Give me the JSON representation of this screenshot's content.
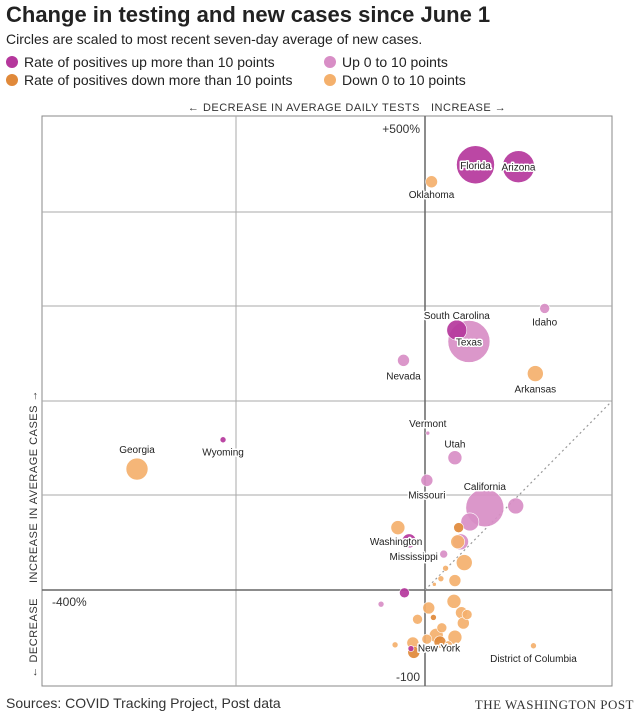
{
  "header": {
    "title": "Change in testing and new cases since June 1",
    "subtitle": "Circles are scaled to most recent seven-day average of new cases."
  },
  "legend": [
    {
      "label": "Rate of positives up more than 10 points",
      "color": "#b5379c"
    },
    {
      "label": "Up 0 to 10 points",
      "color": "#d88ec6"
    },
    {
      "label": "Rate of positives down more than 10 points",
      "color": "#e0893a"
    },
    {
      "label": "Down 0 to 10 points",
      "color": "#f4b06c"
    }
  ],
  "footer": {
    "source": "Sources: COVID Tracking Project, Post data",
    "credit": "THE WASHINGTON POST"
  },
  "chart_data": {
    "type": "scatter",
    "x_axis": {
      "label_left": "← DECREASE IN AVERAGE DAILY TESTS",
      "label_right": "INCREASE →",
      "min_label": "-400%",
      "range": [
        -400,
        200
      ]
    },
    "y_axis": {
      "label_up": "INCREASE IN AVERAGE CASES →",
      "label_down": "← DECREASE",
      "max_label": "+500%",
      "min_label": "-100",
      "range": [
        -100,
        500
      ]
    },
    "reference_line": "diagonal, dotted (cases change equals tests change)",
    "grid": true,
    "colors": {
      "up_more_10": "#b5379c",
      "up_0_10": "#d88ec6",
      "down_more_10": "#e0893a",
      "down_0_10": "#f4b06c"
    },
    "points": [
      {
        "name": "Florida",
        "x": 54,
        "y": 450,
        "size": 19,
        "category": "up_more_10"
      },
      {
        "name": "Arizona",
        "x": 100,
        "y": 448,
        "size": 16,
        "category": "up_more_10"
      },
      {
        "name": "Oklahoma",
        "x": 7,
        "y": 432,
        "size": 6,
        "category": "down_0_10"
      },
      {
        "name": "South Carolina",
        "x": 34,
        "y": 275,
        "size": 10,
        "category": "up_more_10"
      },
      {
        "name": "Texas",
        "x": 47,
        "y": 263,
        "size": 21,
        "category": "up_0_10"
      },
      {
        "name": "Idaho",
        "x": 128,
        "y": 298,
        "size": 5,
        "category": "up_0_10"
      },
      {
        "name": "Nevada",
        "x": -23,
        "y": 243,
        "size": 6,
        "category": "up_0_10"
      },
      {
        "name": "Arkansas",
        "x": 118,
        "y": 229,
        "size": 8,
        "category": "down_0_10"
      },
      {
        "name": "Vermont",
        "x": 3,
        "y": 166,
        "size": 2,
        "category": "up_0_10"
      },
      {
        "name": "Utah",
        "x": 32,
        "y": 140,
        "size": 7,
        "category": "up_0_10"
      },
      {
        "name": "Georgia",
        "x": -308,
        "y": 128,
        "size": 11,
        "category": "down_0_10"
      },
      {
        "name": "Wyoming",
        "x": -216,
        "y": 159,
        "size": 3,
        "category": "up_more_10"
      },
      {
        "name": "Missouri",
        "x": 2,
        "y": 116,
        "size": 6,
        "category": "up_0_10"
      },
      {
        "name": "California",
        "x": 64,
        "y": 87,
        "size": 19,
        "category": "up_0_10"
      },
      {
        "name": "Washington",
        "x": -17,
        "y": 52,
        "size": 7,
        "category": "up_more_10"
      },
      {
        "name": "Mississippi",
        "x": 20,
        "y": 38,
        "size": 4,
        "category": "up_0_10"
      },
      {
        "name": "District of Columbia",
        "x": 116,
        "y": -59,
        "size": 3,
        "category": "down_0_10"
      },
      {
        "name": "New York",
        "x": -15,
        "y": -62,
        "size": 3,
        "category": "up_more_10"
      },
      {
        "name": "",
        "x": 97,
        "y": 89,
        "size": 8,
        "category": "up_0_10"
      },
      {
        "name": "",
        "x": 48,
        "y": 72,
        "size": 9,
        "category": "up_0_10"
      },
      {
        "name": "",
        "x": 38,
        "y": 51,
        "size": 8,
        "category": "up_0_10"
      },
      {
        "name": "",
        "x": 36,
        "y": 66,
        "size": 5,
        "category": "down_more_10"
      },
      {
        "name": "",
        "x": -29,
        "y": 66,
        "size": 7,
        "category": "down_0_10"
      },
      {
        "name": "",
        "x": 35,
        "y": 51,
        "size": 7,
        "category": "down_0_10"
      },
      {
        "name": "",
        "x": 42,
        "y": 29,
        "size": 8,
        "category": "down_0_10"
      },
      {
        "name": "",
        "x": 22,
        "y": 23,
        "size": 3,
        "category": "down_0_10"
      },
      {
        "name": "",
        "x": 32,
        "y": 10,
        "size": 6,
        "category": "down_0_10"
      },
      {
        "name": "",
        "x": 17,
        "y": 12,
        "size": 3,
        "category": "down_0_10"
      },
      {
        "name": "",
        "x": 10,
        "y": 6,
        "size": 2,
        "category": "down_0_10"
      },
      {
        "name": "",
        "x": -22,
        "y": -3,
        "size": 5,
        "category": "up_more_10"
      },
      {
        "name": "",
        "x": -47,
        "y": -15,
        "size": 3,
        "category": "up_0_10"
      },
      {
        "name": "",
        "x": 31,
        "y": -12,
        "size": 7,
        "category": "down_0_10"
      },
      {
        "name": "",
        "x": 39,
        "y": -24,
        "size": 6,
        "category": "down_0_10"
      },
      {
        "name": "",
        "x": 45,
        "y": -26,
        "size": 5,
        "category": "down_0_10"
      },
      {
        "name": "",
        "x": 41,
        "y": -35,
        "size": 6,
        "category": "down_0_10"
      },
      {
        "name": "",
        "x": 32,
        "y": -50,
        "size": 7,
        "category": "down_0_10"
      },
      {
        "name": "",
        "x": 4,
        "y": -19,
        "size": 6,
        "category": "down_0_10"
      },
      {
        "name": "",
        "x": -8,
        "y": -31,
        "size": 5,
        "category": "down_0_10"
      },
      {
        "name": "",
        "x": 9,
        "y": -29,
        "size": 3,
        "category": "down_more_10"
      },
      {
        "name": "",
        "x": 18,
        "y": -40,
        "size": 5,
        "category": "down_0_10"
      },
      {
        "name": "",
        "x": 12,
        "y": -48,
        "size": 7,
        "category": "down_0_10"
      },
      {
        "name": "",
        "x": 16,
        "y": -55,
        "size": 6,
        "category": "down_more_10"
      },
      {
        "name": "",
        "x": 25,
        "y": -58,
        "size": 4,
        "category": "down_0_10"
      },
      {
        "name": "",
        "x": 2,
        "y": -52,
        "size": 5,
        "category": "down_0_10"
      },
      {
        "name": "",
        "x": -13,
        "y": -56,
        "size": 6,
        "category": "down_0_10"
      },
      {
        "name": "",
        "x": -12,
        "y": -66,
        "size": 6,
        "category": "down_more_10"
      },
      {
        "name": "",
        "x": -32,
        "y": -58,
        "size": 3,
        "category": "down_0_10"
      }
    ]
  }
}
